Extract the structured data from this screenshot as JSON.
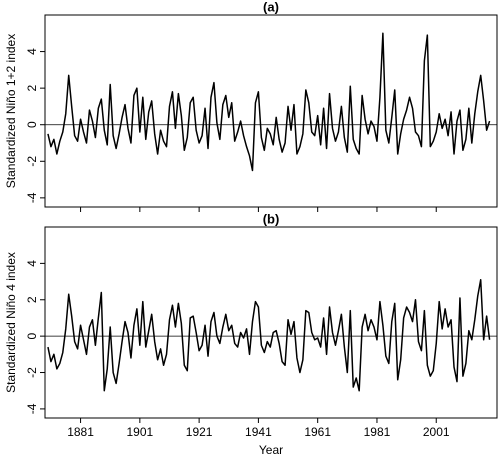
{
  "chart_data": [
    {
      "type": "line",
      "title": "(a)",
      "y_label": "Standardized Niño 1+2 index",
      "x": [
        1870,
        1871,
        1872,
        1873,
        1874,
        1875,
        1876,
        1877,
        1878,
        1879,
        1880,
        1881,
        1882,
        1883,
        1884,
        1885,
        1886,
        1887,
        1888,
        1889,
        1890,
        1891,
        1892,
        1893,
        1894,
        1895,
        1896,
        1897,
        1898,
        1899,
        1900,
        1901,
        1902,
        1903,
        1904,
        1905,
        1906,
        1907,
        1908,
        1909,
        1910,
        1911,
        1912,
        1913,
        1914,
        1915,
        1916,
        1917,
        1918,
        1919,
        1920,
        1921,
        1922,
        1923,
        1924,
        1925,
        1926,
        1927,
        1928,
        1929,
        1930,
        1931,
        1932,
        1933,
        1934,
        1935,
        1936,
        1937,
        1938,
        1939,
        1940,
        1941,
        1942,
        1943,
        1944,
        1945,
        1946,
        1947,
        1948,
        1949,
        1950,
        1951,
        1952,
        1953,
        1954,
        1955,
        1956,
        1957,
        1958,
        1959,
        1960,
        1961,
        1962,
        1963,
        1964,
        1965,
        1966,
        1967,
        1968,
        1969,
        1970,
        1971,
        1972,
        1973,
        1974,
        1975,
        1976,
        1977,
        1978,
        1979,
        1980,
        1981,
        1982,
        1983,
        1984,
        1985,
        1986,
        1987,
        1988,
        1989,
        1990,
        1991,
        1992,
        1993,
        1994,
        1995,
        1996,
        1997,
        1998,
        1999,
        2000,
        2001,
        2002,
        2003,
        2004,
        2005,
        2006,
        2007,
        2008,
        2009,
        2010,
        2011,
        2012,
        2013,
        2014,
        2015,
        2016,
        2017,
        2018,
        2019
      ],
      "values": [
        -0.5,
        -1.2,
        -0.8,
        -1.6,
        -0.9,
        -0.4,
        0.6,
        2.7,
        1.0,
        -0.6,
        -0.9,
        0.3,
        -0.4,
        -1.0,
        0.8,
        0.2,
        -0.7,
        0.9,
        1.4,
        -0.3,
        -1.1,
        2.2,
        -0.6,
        -1.3,
        -0.5,
        0.4,
        1.1,
        -0.2,
        -1.0,
        1.6,
        2.0,
        -0.4,
        1.5,
        -0.8,
        0.7,
        1.3,
        -0.5,
        -1.6,
        -0.3,
        -0.9,
        -1.2,
        1.0,
        1.8,
        -0.2,
        1.7,
        0.5,
        -1.4,
        -0.7,
        1.2,
        1.5,
        -0.3,
        -1.0,
        -0.6,
        0.9,
        -1.3,
        1.5,
        2.3,
        0.1,
        -0.8,
        1.1,
        1.6,
        0.4,
        1.2,
        -0.9,
        -0.4,
        0.2,
        -0.6,
        -1.2,
        -1.7,
        -2.5,
        1.2,
        1.8,
        -0.7,
        -1.4,
        -0.2,
        -0.5,
        -1.1,
        0.4,
        -0.8,
        -1.5,
        -1.0,
        1.0,
        -0.3,
        1.1,
        -1.6,
        -1.2,
        -0.5,
        1.9,
        1.2,
        -0.4,
        -0.6,
        0.5,
        -1.1,
        0.9,
        -1.3,
        1.7,
        -0.2,
        -0.9,
        -0.4,
        1.0,
        -0.7,
        -1.5,
        2.1,
        -0.8,
        -1.3,
        -1.6,
        1.6,
        0.3,
        -0.5,
        0.2,
        -0.1,
        -0.9,
        1.5,
        5.0,
        -0.3,
        -1.0,
        0.4,
        1.9,
        -1.6,
        -0.5,
        0.3,
        0.8,
        1.5,
        0.9,
        -0.4,
        -0.6,
        -1.2,
        3.5,
        4.9,
        -1.2,
        -0.9,
        -0.4,
        0.6,
        -0.2,
        0.3,
        -0.6,
        0.7,
        -1.6,
        0.2,
        0.8,
        -1.4,
        -0.8,
        0.9,
        -1.0,
        0.6,
        1.8,
        2.7,
        1.3,
        -0.3,
        0.2
      ],
      "color": "#000000",
      "xlim": [
        1869,
        2021.5
      ],
      "ylim": [
        -4.5,
        6
      ],
      "yticks": [
        -4,
        -2,
        0,
        2,
        4
      ],
      "xticks": [
        1881,
        1901,
        1921,
        1941,
        1961,
        1981,
        2001
      ],
      "show_xtick_labels": false,
      "reference_line": 0
    },
    {
      "type": "line",
      "title": "(b)",
      "y_label": "Standardized Niño 4 index",
      "x_label": "Year",
      "x": [
        1870,
        1871,
        1872,
        1873,
        1874,
        1875,
        1876,
        1877,
        1878,
        1879,
        1880,
        1881,
        1882,
        1883,
        1884,
        1885,
        1886,
        1887,
        1888,
        1889,
        1890,
        1891,
        1892,
        1893,
        1894,
        1895,
        1896,
        1897,
        1898,
        1899,
        1900,
        1901,
        1902,
        1903,
        1904,
        1905,
        1906,
        1907,
        1908,
        1909,
        1910,
        1911,
        1912,
        1913,
        1914,
        1915,
        1916,
        1917,
        1918,
        1919,
        1920,
        1921,
        1922,
        1923,
        1924,
        1925,
        1926,
        1927,
        1928,
        1929,
        1930,
        1931,
        1932,
        1933,
        1934,
        1935,
        1936,
        1937,
        1938,
        1939,
        1940,
        1941,
        1942,
        1943,
        1944,
        1945,
        1946,
        1947,
        1948,
        1949,
        1950,
        1951,
        1952,
        1953,
        1954,
        1955,
        1956,
        1957,
        1958,
        1959,
        1960,
        1961,
        1962,
        1963,
        1964,
        1965,
        1966,
        1967,
        1968,
        1969,
        1970,
        1971,
        1972,
        1973,
        1974,
        1975,
        1976,
        1977,
        1978,
        1979,
        1980,
        1981,
        1982,
        1983,
        1984,
        1985,
        1986,
        1987,
        1988,
        1989,
        1990,
        1991,
        1992,
        1993,
        1994,
        1995,
        1996,
        1997,
        1998,
        1999,
        2000,
        2001,
        2002,
        2003,
        2004,
        2005,
        2006,
        2007,
        2008,
        2009,
        2010,
        2011,
        2012,
        2013,
        2014,
        2015,
        2016,
        2017,
        2018,
        2019
      ],
      "values": [
        -0.6,
        -1.4,
        -1.0,
        -1.8,
        -1.5,
        -0.9,
        0.4,
        2.3,
        1.1,
        -0.3,
        -0.7,
        0.6,
        -0.2,
        -1.0,
        0.5,
        0.9,
        -0.5,
        1.0,
        2.4,
        -3.0,
        -1.8,
        0.5,
        -2.0,
        -2.6,
        -1.5,
        -0.3,
        0.8,
        0.2,
        -1.2,
        0.6,
        1.5,
        -0.5,
        1.9,
        -0.6,
        0.3,
        1.2,
        -0.3,
        -1.3,
        -0.7,
        -1.6,
        -1.0,
        0.9,
        1.7,
        0.5,
        1.8,
        0.7,
        -1.6,
        -1.9,
        1.0,
        1.1,
        0.2,
        -0.8,
        -0.5,
        0.6,
        -1.1,
        0.8,
        1.3,
        0.0,
        -0.4,
        0.5,
        1.2,
        0.3,
        0.6,
        -0.4,
        -0.6,
        0.2,
        -0.1,
        0.4,
        -1.0,
        0.8,
        1.9,
        1.6,
        -0.5,
        -0.9,
        -0.3,
        -0.6,
        0.2,
        0.3,
        -0.4,
        -1.4,
        -1.6,
        0.9,
        0.1,
        0.8,
        -1.2,
        -2.0,
        -1.3,
        1.4,
        1.3,
        0.2,
        -0.2,
        -0.1,
        -0.6,
        1.0,
        -1.0,
        1.6,
        0.2,
        -0.5,
        0.3,
        1.2,
        -0.6,
        -2.0,
        1.4,
        -2.8,
        -2.3,
        -3.0,
        0.5,
        1.2,
        0.3,
        0.9,
        0.5,
        -0.2,
        1.9,
        0.6,
        -1.1,
        -1.5,
        0.8,
        1.8,
        -2.4,
        -1.3,
        1.0,
        1.6,
        1.3,
        0.8,
        2.0,
        -0.3,
        -0.8,
        1.4,
        -1.6,
        -2.2,
        -1.9,
        -0.4,
        1.9,
        0.4,
        1.5,
        0.5,
        0.9,
        -1.7,
        -2.5,
        2.1,
        -2.2,
        -1.5,
        0.3,
        -0.2,
        0.9,
        2.2,
        3.1,
        -0.2,
        1.1,
        -0.2
      ],
      "color": "#000000",
      "xlim": [
        1869,
        2021.5
      ],
      "ylim": [
        -4.5,
        6
      ],
      "yticks": [
        -4,
        -2,
        0,
        2,
        4
      ],
      "xticks": [
        1881,
        1901,
        1921,
        1941,
        1961,
        1981,
        2001
      ],
      "show_xtick_labels": true,
      "reference_line": 0
    }
  ]
}
